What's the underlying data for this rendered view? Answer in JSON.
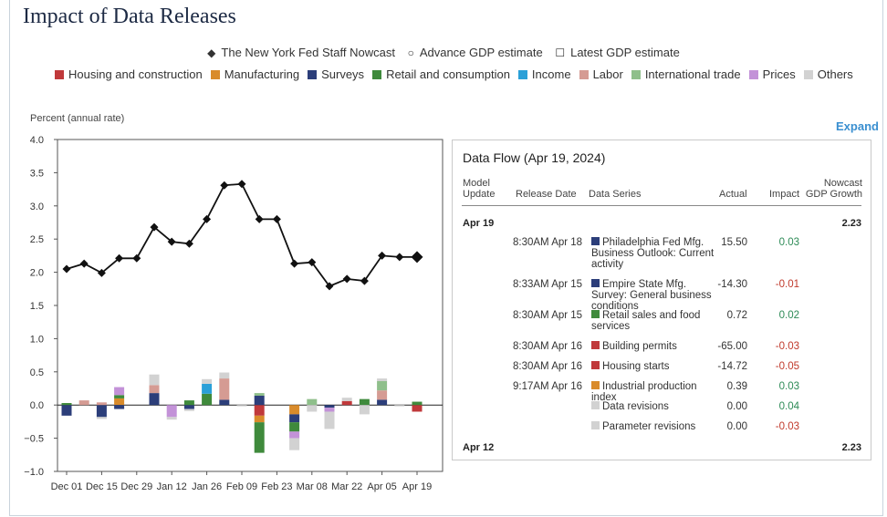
{
  "title": "Impact of Data Releases",
  "legend_top": [
    {
      "symbol": "◆",
      "label": "The New York Fed Staff Nowcast"
    },
    {
      "symbol": "○",
      "label": "Advance GDP estimate"
    },
    {
      "symbol": "☐",
      "label": "Latest GDP estimate"
    }
  ],
  "categories_legend": [
    {
      "label": "Housing and construction",
      "color": "#c0393b"
    },
    {
      "label": "Manufacturing",
      "color": "#d98b2b"
    },
    {
      "label": "Surveys",
      "color": "#2c3e7a"
    },
    {
      "label": "Retail and consumption",
      "color": "#3f8a3c"
    },
    {
      "label": "Income",
      "color": "#2aa0d8"
    },
    {
      "label": "Labor",
      "color": "#d59b93"
    },
    {
      "label": "International trade",
      "color": "#8fbf8b"
    },
    {
      "label": "Prices",
      "color": "#c392d8"
    },
    {
      "label": "Others",
      "color": "#d2d2d2"
    }
  ],
  "chart_data": {
    "type": "line",
    "ylabel": "Percent (annual rate)",
    "ylim": [
      -1.0,
      4.0
    ],
    "yticks": [
      "4.0",
      "3.5",
      "3.0",
      "2.5",
      "2.0",
      "1.5",
      "1.0",
      "0.5",
      "0.0",
      "−0.5",
      "−1.0"
    ],
    "xticks": [
      "Dec 01",
      "Dec 15",
      "Dec 29",
      "Jan 12",
      "Jan 26",
      "Feb 09",
      "Feb 23",
      "Mar 08",
      "Mar 22",
      "Apr 05",
      "Apr 19"
    ],
    "series": [
      {
        "name": "The New York Fed Staff Nowcast",
        "values": [
          2.05,
          2.13,
          1.99,
          2.21,
          2.21,
          2.68,
          2.46,
          2.43,
          2.8,
          3.31,
          3.33,
          2.8,
          2.8,
          2.13,
          2.15,
          1.79,
          1.9,
          1.87,
          2.25,
          2.23,
          2.23
        ]
      }
    ],
    "bar_categories": [
      "Housing and construction",
      "Manufacturing",
      "Surveys",
      "Retail and consumption",
      "Income",
      "Labor",
      "International trade",
      "Prices",
      "Others"
    ],
    "bars": [
      {
        "Surveys": -0.16,
        "Retail and consumption": 0.03
      },
      {
        "Labor": 0.07
      },
      {
        "Surveys": -0.18,
        "Others": -0.03,
        "Labor": 0.04
      },
      {
        "Surveys": -0.06,
        "Prices": 0.12,
        "Manufacturing": 0.1,
        "Retail and consumption": 0.05
      },
      {},
      {
        "Surveys": 0.18,
        "Labor": 0.12,
        "Others": 0.16
      },
      {
        "Prices": -0.18,
        "Others": -0.04
      },
      {
        "Surveys": -0.06,
        "Others": -0.03,
        "Retail and consumption": 0.07
      },
      {
        "Retail and consumption": 0.17,
        "Income": 0.15,
        "Others": 0.07
      },
      {
        "Surveys": 0.08,
        "Labor": 0.32,
        "Others": 0.09
      },
      {
        "Others": -0.02
      },
      {
        "Surveys": 0.14,
        "Housing and construction": -0.16,
        "Manufacturing": -0.1,
        "Retail and consumption": -0.46,
        "International trade": 0.04
      },
      {},
      {
        "Prices": -0.1,
        "Manufacturing": -0.14,
        "Surveys": -0.12,
        "Retail and consumption": -0.14,
        "Others": -0.18
      },
      {
        "Others": -0.1,
        "International trade": 0.09
      },
      {
        "Prices": -0.06,
        "Surveys": -0.04,
        "Others": -0.26
      },
      {
        "Housing and construction": 0.06,
        "Others": 0.05
      },
      {
        "Retail and consumption": 0.09,
        "Others": -0.14
      },
      {
        "Surveys": 0.08,
        "Labor": 0.14,
        "International trade": 0.14,
        "Others": 0.04
      },
      {
        "Others": -0.02
      },
      {
        "Retail and consumption": 0.05,
        "Housing and construction": -0.1
      }
    ]
  },
  "expand_label": "Expand",
  "data_flow": {
    "title": "Data Flow (Apr 19, 2024)",
    "headers": {
      "model_update_1": "Model",
      "model_update_2": "Update",
      "release_date": "Release Date",
      "data_series": "Data Series",
      "actual": "Actual",
      "impact": "Impact",
      "nowcast_1": "Nowcast",
      "nowcast_2": "GDP Growth"
    },
    "groups": [
      {
        "label": "Apr 19",
        "nowcast": "2.23"
      },
      {
        "label": "Apr 12",
        "nowcast": "2.23"
      }
    ],
    "rows": [
      {
        "release": "8:30AM Apr 18",
        "series": "Philadelphia Fed Mfg. Business Outlook: Current activity",
        "color": "#2c3e7a",
        "actual": "15.50",
        "impact": "0.03",
        "sign": "pos"
      },
      {
        "release": "8:33AM Apr 15",
        "series": "Empire State Mfg. Survey: General business conditions",
        "color": "#2c3e7a",
        "actual": "-14.30",
        "impact": "-0.01",
        "sign": "neg"
      },
      {
        "release": "8:30AM Apr 15",
        "series": "Retail sales and food services",
        "color": "#3f8a3c",
        "actual": "0.72",
        "impact": "0.02",
        "sign": "pos"
      },
      {
        "release": "8:30AM Apr 16",
        "series": "Building permits",
        "color": "#c0393b",
        "actual": "-65.00",
        "impact": "-0.03",
        "sign": "neg"
      },
      {
        "release": "8:30AM Apr 16",
        "series": "Housing starts",
        "color": "#c0393b",
        "actual": "-14.72",
        "impact": "-0.05",
        "sign": "neg"
      },
      {
        "release": "9:17AM Apr 16",
        "series": "Industrial production index",
        "color": "#d98b2b",
        "actual": "0.39",
        "impact": "0.03",
        "sign": "pos"
      },
      {
        "release": "",
        "series": "Data revisions",
        "color": "#d2d2d2",
        "actual": "0.00",
        "impact": "0.04",
        "sign": "pos"
      },
      {
        "release": "",
        "series": "Parameter revisions",
        "color": "#d2d2d2",
        "actual": "0.00",
        "impact": "-0.03",
        "sign": "neg"
      }
    ]
  }
}
